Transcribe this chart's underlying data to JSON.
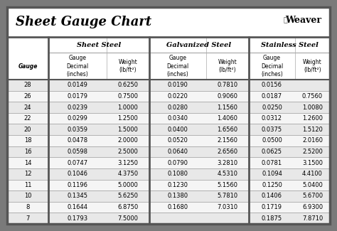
{
  "title": "Sheet Gauge Chart",
  "outer_bg": "#7a7a7a",
  "inner_bg": "#ffffff",
  "row_colors": [
    "#e8e8e8",
    "#f5f5f5"
  ],
  "border_dark": "#555555",
  "border_light": "#aaaaaa",
  "gauges": [
    28,
    26,
    24,
    22,
    20,
    18,
    16,
    14,
    12,
    11,
    10,
    8,
    7
  ],
  "sheet_steel": {
    "label": "Sheet Steel",
    "decimal": [
      "0.0149",
      "0.0179",
      "0.0239",
      "0.0299",
      "0.0359",
      "0.0478",
      "0.0598",
      "0.0747",
      "0.1046",
      "0.1196",
      "0.1345",
      "0.1644",
      "0.1793"
    ],
    "weight": [
      "0.6250",
      "0.7500",
      "1.0000",
      "1.2500",
      "1.5000",
      "2.0000",
      "2.5000",
      "3.1250",
      "4.3750",
      "5.0000",
      "5.6250",
      "6.8750",
      "7.5000"
    ]
  },
  "galvanized_steel": {
    "label": "Galvanized Steel",
    "decimal": [
      "0.0190",
      "0.0220",
      "0.0280",
      "0.0340",
      "0.0400",
      "0.0520",
      "0.0640",
      "0.0790",
      "0.1080",
      "0.1230",
      "0.1380",
      "0.1680",
      ""
    ],
    "weight": [
      "0.7810",
      "0.9060",
      "1.1560",
      "1.4060",
      "1.6560",
      "2.1560",
      "2.6560",
      "3.2810",
      "4.5310",
      "5.1560",
      "5.7810",
      "7.0310",
      ""
    ]
  },
  "stainless_steel": {
    "label": "Stainless Steel",
    "decimal": [
      "0.0156",
      "0.0187",
      "0.0250",
      "0.0312",
      "0.0375",
      "0.0500",
      "0.0625",
      "0.0781",
      "0.1094",
      "0.1250",
      "0.1406",
      "0.1719",
      "0.1875"
    ],
    "weight": [
      "",
      "0.7560",
      "1.0080",
      "1.2600",
      "1.5120",
      "2.0160",
      "2.5200",
      "3.1500",
      "4.4100",
      "5.0400",
      "5.6700",
      "6.9300",
      "7.8710"
    ]
  }
}
